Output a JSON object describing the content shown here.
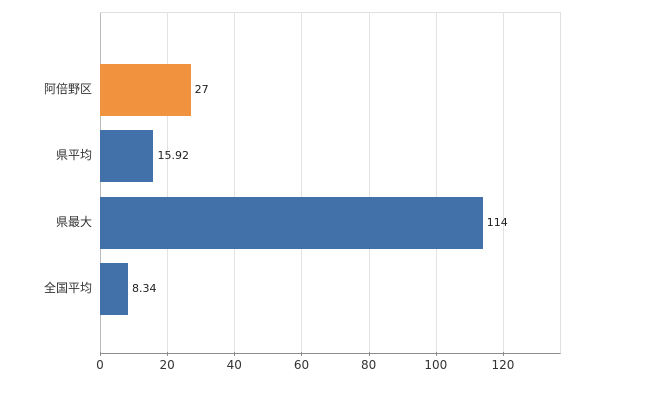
{
  "chart_data": {
    "type": "bar",
    "orientation": "horizontal",
    "title": "",
    "xlabel": "",
    "ylabel": "",
    "categories": [
      "阿倍野区",
      "県平均",
      "県最大",
      "全国平均"
    ],
    "values": [
      27,
      15.92,
      114,
      8.34
    ],
    "value_labels": [
      "27",
      "15.92",
      "114",
      "8.34"
    ],
    "bar_colors": [
      "#f0923e",
      "#4270a8",
      "#4270a8",
      "#4270a8"
    ],
    "x_ticks": [
      0,
      20,
      40,
      60,
      80,
      100,
      120
    ],
    "x_tick_labels": [
      "0",
      "20",
      "40",
      "60",
      "80",
      "100",
      "120"
    ],
    "xlim": [
      0,
      137
    ],
    "grid": "vertical",
    "legend": "none"
  },
  "colors": {
    "highlight_bar": "#f0923e",
    "default_bar": "#4270a8",
    "axis": "#8c8c8c",
    "gridline": "#e3e3e3",
    "text": "#333333",
    "background": "#ffffff"
  }
}
